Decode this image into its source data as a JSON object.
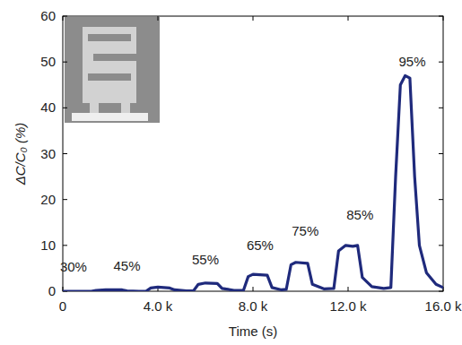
{
  "chart_data": {
    "type": "line",
    "x_label": "Time (s)",
    "y_label": "ΔC/C₀ (%)",
    "color": "#1f2a7c",
    "x": [
      0,
      1200,
      1400,
      1800,
      2500,
      2700,
      3200,
      3500,
      3700,
      4000,
      4500,
      4700,
      5200,
      5500,
      5700,
      6000,
      6500,
      6700,
      7200,
      7600,
      7800,
      8000,
      8600,
      8800,
      9200,
      9400,
      9600,
      9800,
      10300,
      10500,
      11000,
      11400,
      11600,
      11900,
      12200,
      12400,
      12600,
      13000,
      13500,
      13800,
      14000,
      14200,
      14400,
      14600,
      14800,
      15000,
      15300,
      15700,
      16000
    ],
    "values": [
      0,
      0,
      0.2,
      0.3,
      0.3,
      0.1,
      0,
      0,
      0.7,
      0.9,
      0.7,
      0.3,
      0.1,
      0.1,
      1.5,
      1.8,
      1.7,
      0.6,
      0.2,
      0.2,
      3.2,
      3.7,
      3.5,
      0.8,
      0.3,
      0.4,
      5.8,
      6.3,
      6.1,
      1.5,
      0.5,
      0.6,
      8.8,
      10.0,
      9.8,
      10.0,
      3.0,
      1.0,
      0.6,
      0.8,
      25,
      45,
      47,
      46.5,
      25,
      10,
      4,
      1.5,
      0.8
    ],
    "xlim": [
      0,
      16000
    ],
    "ylim": [
      0,
      60
    ],
    "xticks": [
      0,
      {
        "value": 4000,
        "label": "4.0 k"
      },
      {
        "value": 8000,
        "label": "8.0 k"
      },
      {
        "value": 12000,
        "label": "12.0 k"
      },
      {
        "value": 16000,
        "label": "16.0 k"
      }
    ],
    "yticks": [
      0,
      10,
      20,
      30,
      40,
      50,
      60
    ],
    "annotations": [
      {
        "text": "30%",
        "x": 450,
        "y": 5.3
      },
      {
        "text": "45%",
        "x": 2700,
        "y": 5.5
      },
      {
        "text": "55%",
        "x": 6000,
        "y": 6.8
      },
      {
        "text": "65%",
        "x": 8300,
        "y": 10
      },
      {
        "text": "75%",
        "x": 10200,
        "y": 13
      },
      {
        "text": "85%",
        "x": 12500,
        "y": 16.6
      },
      {
        "text": "95%",
        "x": 14700,
        "y": 50
      }
    ]
  }
}
